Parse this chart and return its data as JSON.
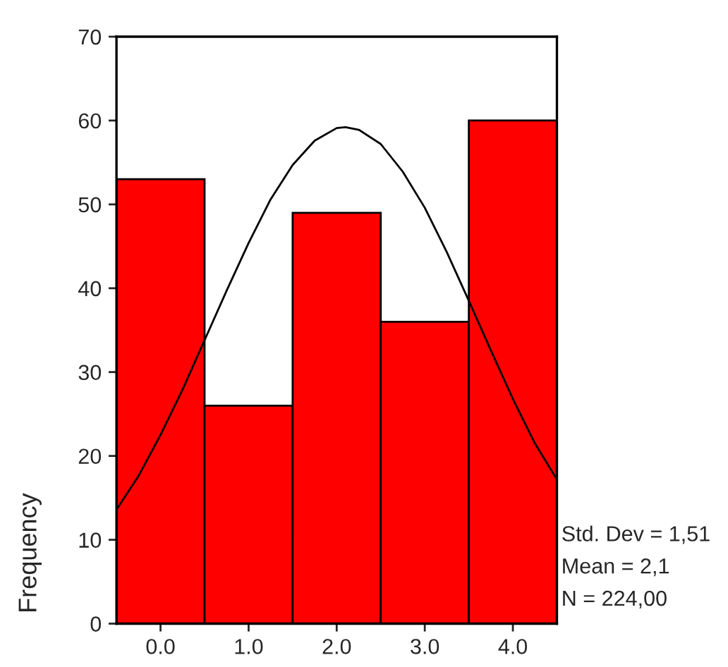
{
  "chart_data": {
    "type": "histogram",
    "ylabel": "Frequency",
    "series": [
      {
        "bins": [
          -0.5,
          0.5,
          1.5,
          2.5,
          3.5,
          4.5
        ],
        "values": [
          53,
          26,
          49,
          36,
          60
        ],
        "color": "#ff0000"
      },
      {
        "type": "line",
        "color": "#000000",
        "x": [
          -0.5,
          -0.25,
          0,
          0.25,
          0.5,
          0.75,
          1.0,
          1.25,
          1.5,
          1.75,
          2.0,
          2.1,
          2.25,
          2.5,
          2.75,
          3.0,
          3.25,
          3.5,
          3.75,
          4.0,
          4.25,
          4.5
        ],
        "values": [
          13.6,
          17.6,
          22.5,
          27.9,
          33.8,
          39.7,
          45.4,
          50.6,
          54.7,
          57.6,
          59.1,
          59.2,
          58.9,
          57.2,
          53.9,
          49.6,
          44.3,
          38.5,
          32.6,
          26.8,
          21.5,
          17.2
        ]
      }
    ],
    "xlim": [
      -0.5,
      4.5
    ],
    "xticks": [
      {
        "value": 0,
        "label": "0.0"
      },
      {
        "value": 1,
        "label": "1.0"
      },
      {
        "value": 2,
        "label": "2.0"
      },
      {
        "value": 3,
        "label": "3.0"
      },
      {
        "value": 4,
        "label": "4.0"
      }
    ],
    "ylim": [
      0,
      70
    ],
    "yticks": [
      0,
      10,
      20,
      30,
      40,
      50,
      60,
      70
    ],
    "annotations": [
      "Std. Dev = 1,51",
      "Mean = 2,1",
      "N = 224,00"
    ]
  }
}
